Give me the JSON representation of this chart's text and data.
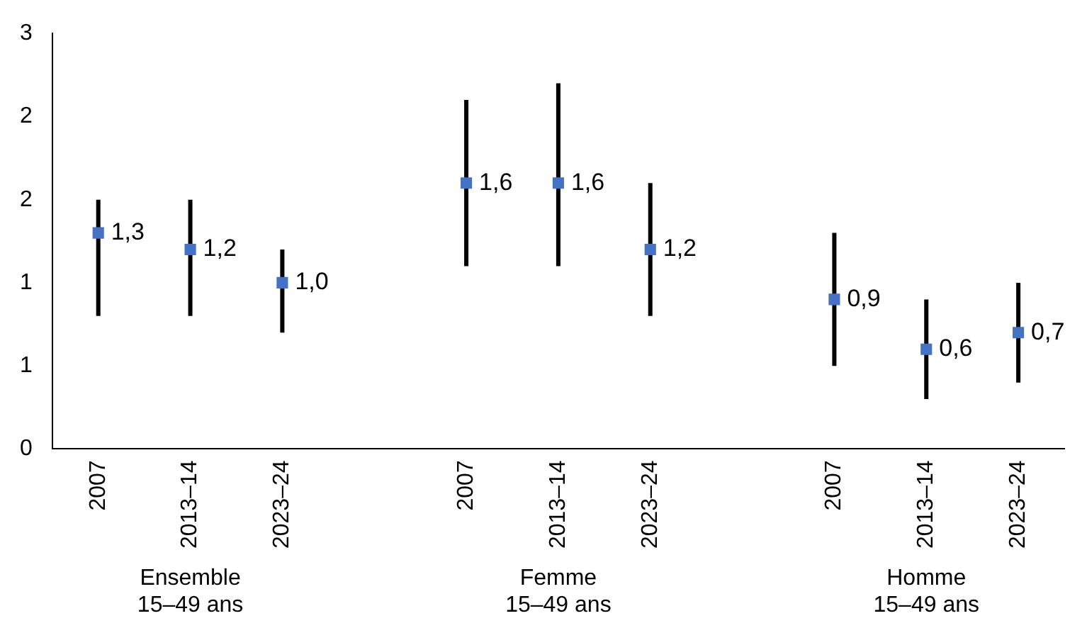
{
  "chart_data": {
    "type": "scatter",
    "categories": [
      "2007",
      "2013–14",
      "2023–24",
      null,
      "2007",
      "2013–14",
      "2023–24",
      null,
      "2007",
      "2013–14",
      "2023–24"
    ],
    "values": [
      1.3,
      1.2,
      1.0,
      null,
      1.6,
      1.6,
      1.2,
      null,
      0.9,
      0.6,
      0.7
    ],
    "value_labels": [
      "1,3",
      "1,2",
      "1,0",
      null,
      "1,6",
      "1,6",
      "1,2",
      null,
      "0,9",
      "0,6",
      "0,7"
    ],
    "errors": [
      [
        0.8,
        1.5
      ],
      [
        0.8,
        1.5
      ],
      [
        0.7,
        1.2
      ],
      null,
      [
        1.1,
        2.1
      ],
      [
        1.1,
        2.2
      ],
      [
        0.8,
        1.6
      ],
      null,
      [
        0.5,
        1.3
      ],
      [
        0.3,
        0.9
      ],
      [
        0.4,
        1.0
      ]
    ],
    "color": "#4472c4",
    "marker": "square",
    "grid": false,
    "legend": false,
    "ylim": [
      0,
      2.5
    ],
    "yticks": [
      0,
      {
        "value": 0.5,
        "label": "1"
      },
      1,
      {
        "value": 1.5,
        "label": "2"
      },
      2,
      {
        "value": 2.5,
        "label": "3"
      }
    ],
    "annotations": [
      "Ensemble\n15–49 ans",
      "Femme\n15–49 ans",
      "Homme\n15–49 ans"
    ]
  }
}
